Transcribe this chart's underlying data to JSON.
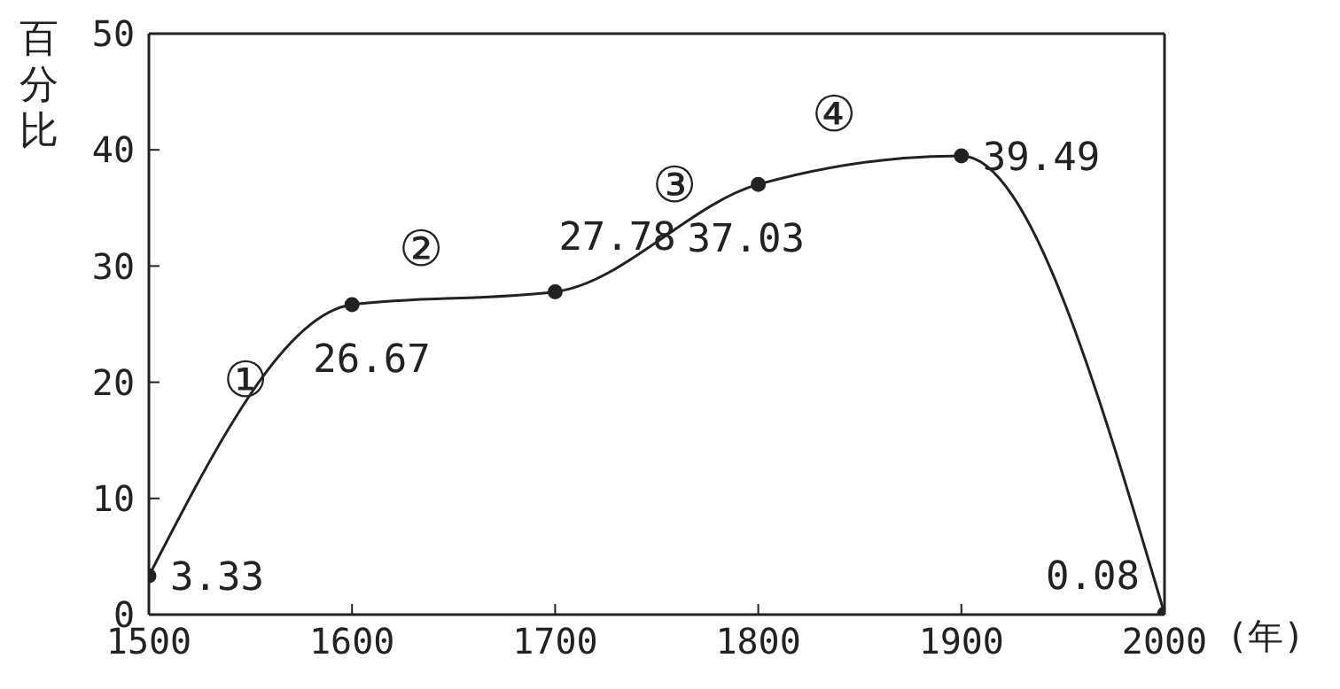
{
  "chart_data": {
    "type": "line",
    "ylabel": "百分比",
    "xlabel": "(年)",
    "x": [
      1500,
      1600,
      1700,
      1800,
      1900,
      2000
    ],
    "series": [
      {
        "color": "#222222",
        "values": [
          3.33,
          26.67,
          27.78,
          37.03,
          39.49,
          0.08
        ]
      }
    ],
    "xlim": [
      1500,
      2000
    ],
    "xticks": [
      1500,
      1600,
      1700,
      1800,
      1900,
      2000
    ],
    "ylim": [
      0,
      50
    ],
    "yticks": [
      0,
      10,
      20,
      30,
      40,
      50
    ],
    "data_labels": true,
    "marker": "circle",
    "line_style": "solid",
    "annotations": [
      "①",
      "②",
      "③",
      "④"
    ]
  }
}
